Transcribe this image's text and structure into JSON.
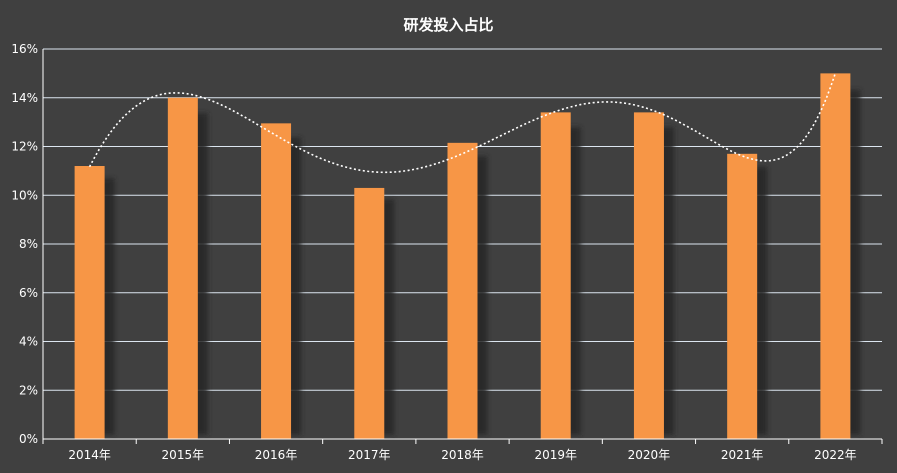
{
  "chart_data": {
    "type": "bar",
    "title": "研发投入占比",
    "categories": [
      "2014年",
      "2015年",
      "2016年",
      "2017年",
      "2018年",
      "2019年",
      "2020年",
      "2021年",
      "2022年"
    ],
    "series": [
      {
        "values": [
          11.2,
          14.0,
          12.95,
          10.3,
          12.15,
          13.4,
          13.4,
          11.7,
          15.0
        ]
      }
    ],
    "ylim": [
      0,
      16
    ],
    "yticks": [
      0,
      2,
      4,
      6,
      8,
      10,
      12,
      14,
      16
    ],
    "ytick_suffix": "%",
    "grid": true,
    "smooth_trendline": true,
    "colors": {
      "background": "#404040",
      "bar": "#f79646",
      "shadow": "#262626",
      "grid": "#dce6f0",
      "trendline": "#ffffff"
    }
  }
}
